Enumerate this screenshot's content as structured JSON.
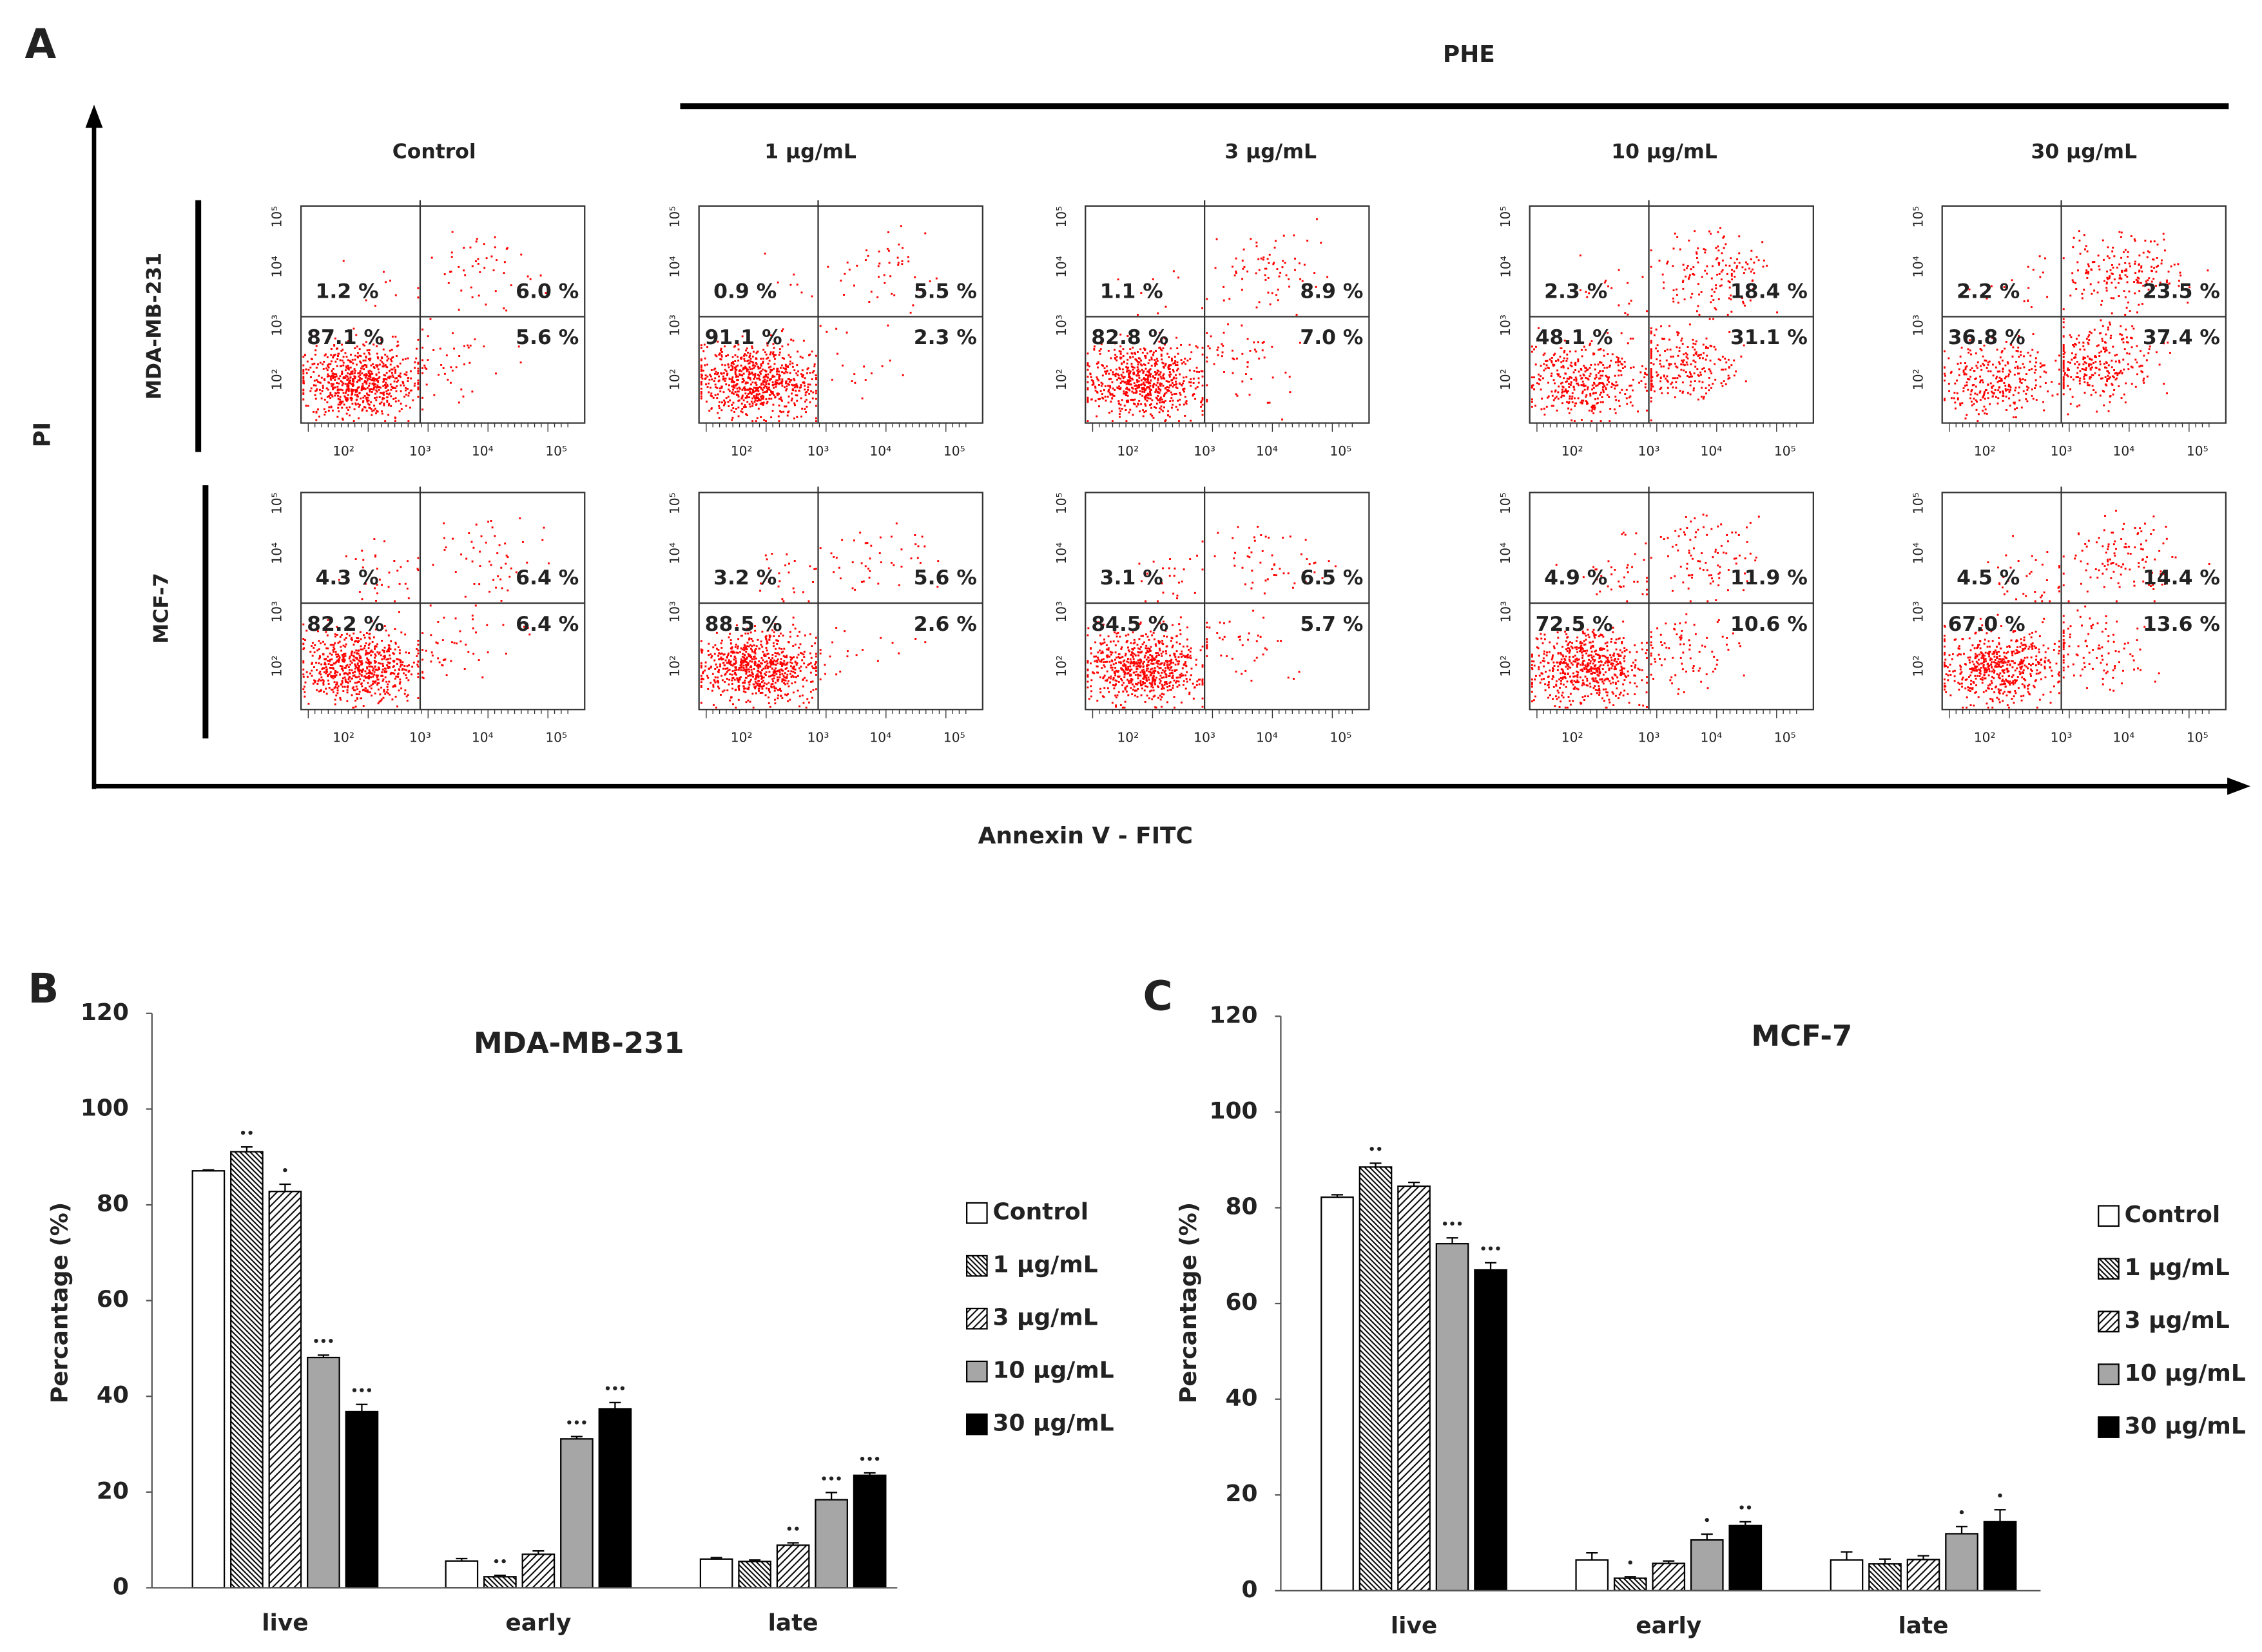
{
  "panel_a": {
    "label": "A",
    "treatment": "PHE",
    "y_label": "PI",
    "x_label": "Annexin V - FITC",
    "axis_ticks": [
      "10²",
      "10³",
      "10⁴",
      "10⁵"
    ],
    "conditions": [
      "Control",
      "1 µg/mL",
      "3 µg/mL",
      "10 µg/mL",
      "30 µg/mL"
    ],
    "rows": [
      {
        "name": "MDA-MB-231",
        "plots": [
          [
            "1.2 %",
            "6.0 %",
            "87.1 %",
            "5.6 %"
          ],
          [
            "0.9 %",
            "5.5 %",
            "91.1 %",
            "2.3 %"
          ],
          [
            "1.1 %",
            "8.9 %",
            "82.8 %",
            "7.0 %"
          ],
          [
            "2.3 %",
            "18.4 %",
            "48.1 %",
            "31.1 %"
          ],
          [
            "2.2 %",
            "23.5 %",
            "36.8 %",
            "37.4 %"
          ]
        ]
      },
      {
        "name": "MCF-7",
        "plots": [
          [
            "4.3 %",
            "6.4 %",
            "82.2 %",
            "6.4 %"
          ],
          [
            "3.2 %",
            "5.6 %",
            "88.5 %",
            "2.6 %"
          ],
          [
            "3.1 %",
            "6.5 %",
            "84.5 %",
            "5.7 %"
          ],
          [
            "4.9 %",
            "11.9 %",
            "72.5 %",
            "10.6 %"
          ],
          [
            "4.5 %",
            "14.4 %",
            "67.0 %",
            "13.6 %"
          ]
        ]
      }
    ]
  },
  "chart_data": [
    {
      "type": "bar",
      "panel_label": "B",
      "title": "MDA-MB-231",
      "ylabel": "Percantage (%)",
      "categories": [
        "live",
        "early",
        "late"
      ],
      "ylim": [
        0,
        120
      ],
      "yticks": [
        0,
        20,
        40,
        60,
        80,
        100,
        120
      ],
      "series": [
        {
          "name": "Control",
          "color": "#ffffff",
          "values": [
            87.1,
            5.6,
            6.0
          ],
          "errors": [
            0.2,
            0.5,
            0.3
          ],
          "annotations": [
            null,
            null,
            null
          ]
        },
        {
          "name": "1 µg/mL",
          "color": "#ffffff",
          "hatch": "backward",
          "values": [
            91.1,
            2.3,
            5.5
          ],
          "errors": [
            1.0,
            0.3,
            0.3
          ],
          "annotations": [
            "••",
            "••",
            null
          ]
        },
        {
          "name": "3 µg/mL",
          "color": "#ffffff",
          "hatch": "forward",
          "values": [
            82.8,
            7.0,
            8.9
          ],
          "errors": [
            1.5,
            0.7,
            0.5
          ],
          "annotations": [
            "•",
            null,
            "••"
          ]
        },
        {
          "name": "10 µg/mL",
          "color": "#a6a6a6",
          "values": [
            48.1,
            31.1,
            18.4
          ],
          "errors": [
            0.5,
            0.5,
            1.5
          ],
          "annotations": [
            "•••",
            "•••",
            "•••"
          ]
        },
        {
          "name": "30 µg/mL",
          "color": "#000000",
          "values": [
            36.8,
            37.4,
            23.5
          ],
          "errors": [
            1.5,
            1.3,
            0.5
          ],
          "annotations": [
            "•••",
            "•••",
            "•••"
          ]
        }
      ]
    },
    {
      "type": "bar",
      "panel_label": "C",
      "title": "MCF-7",
      "ylabel": "Percantage (%)",
      "categories": [
        "live",
        "early",
        "late"
      ],
      "ylim": [
        0,
        120
      ],
      "yticks": [
        0,
        20,
        40,
        60,
        80,
        100,
        120
      ],
      "series": [
        {
          "name": "Control",
          "color": "#ffffff",
          "values": [
            82.2,
            6.4,
            6.4
          ],
          "errors": [
            0.5,
            1.5,
            1.7
          ],
          "annotations": [
            null,
            null,
            null
          ]
        },
        {
          "name": "1 µg/mL",
          "color": "#ffffff",
          "hatch": "backward",
          "values": [
            88.5,
            2.6,
            5.6
          ],
          "errors": [
            0.8,
            0.3,
            1.0
          ],
          "annotations": [
            "••",
            "•",
            null
          ]
        },
        {
          "name": "3 µg/mL",
          "color": "#ffffff",
          "hatch": "forward",
          "values": [
            84.5,
            5.7,
            6.5
          ],
          "errors": [
            0.8,
            0.5,
            0.8
          ],
          "annotations": [
            null,
            null,
            null
          ]
        },
        {
          "name": "10 µg/mL",
          "color": "#a6a6a6",
          "values": [
            72.5,
            10.6,
            11.9
          ],
          "errors": [
            1.2,
            1.2,
            1.5
          ],
          "annotations": [
            "•••",
            "•",
            "•"
          ]
        },
        {
          "name": "30 µg/mL",
          "color": "#000000",
          "values": [
            67.0,
            13.6,
            14.4
          ],
          "errors": [
            1.5,
            0.8,
            2.5
          ],
          "annotations": [
            "•••",
            "••",
            "•"
          ]
        }
      ]
    }
  ]
}
